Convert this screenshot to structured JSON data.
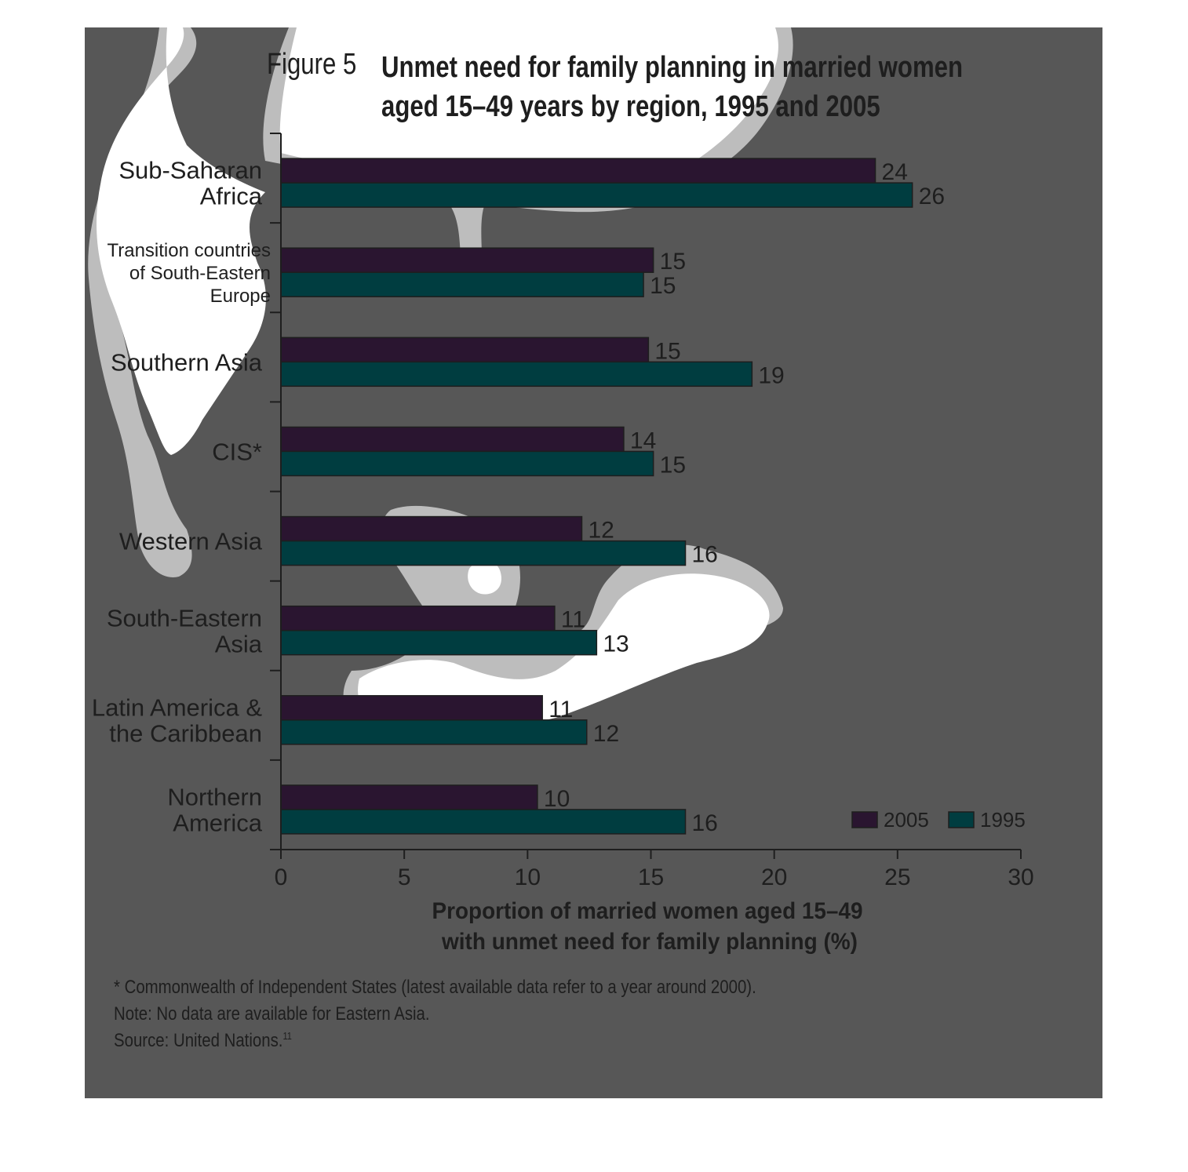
{
  "figure": {
    "label": "Figure 5",
    "title_line1": "Unmet need for family planning in married women",
    "title_line2": "aged 15–49 years by region, 1995 and 2005"
  },
  "colors": {
    "panel_bg": "#575757",
    "bar_2005": "#2a1530",
    "bar_1995": "#003d40",
    "text": "#1e1e1e"
  },
  "notes": {
    "footnote": "* Commonwealth of Independent States (latest available data refer to a year around 2000).",
    "note": "Note: No data are available for Eastern Asia.",
    "source": "Source: United Nations.",
    "source_ref": "11"
  },
  "chart_data": {
    "type": "bar",
    "orientation": "horizontal",
    "categories": [
      [
        "Sub-Saharan",
        "Africa"
      ],
      [
        "Transition countries",
        "of South-Eastern",
        "Europe"
      ],
      [
        "Southern Asia"
      ],
      [
        "CIS*"
      ],
      [
        "Western Asia"
      ],
      [
        "South-Eastern",
        "Asia"
      ],
      [
        "Latin America &",
        "the Caribbean"
      ],
      [
        "Northern",
        "America"
      ]
    ],
    "series": [
      {
        "name": "2005",
        "color": "#2a1530",
        "values": [
          24.1,
          15.1,
          14.9,
          13.9,
          12.2,
          11.1,
          10.6,
          10.4
        ],
        "labels": [
          "24",
          "15",
          "15",
          "14",
          "12",
          "11",
          "11",
          "10"
        ]
      },
      {
        "name": "1995",
        "color": "#003d40",
        "values": [
          25.6,
          14.7,
          19.1,
          15.1,
          16.4,
          12.8,
          12.4,
          16.4
        ],
        "labels": [
          "26",
          "15",
          "19",
          "15",
          "16",
          "13",
          "12",
          "16"
        ]
      }
    ],
    "xlim": [
      0,
      30
    ],
    "xticks": [
      0,
      5,
      10,
      15,
      20,
      25,
      30
    ],
    "xlabel_line1": "Proportion of married women aged 15–49",
    "xlabel_line2": "with unmet need for family planning (%)",
    "legend": "bottom-right",
    "grid": false
  }
}
